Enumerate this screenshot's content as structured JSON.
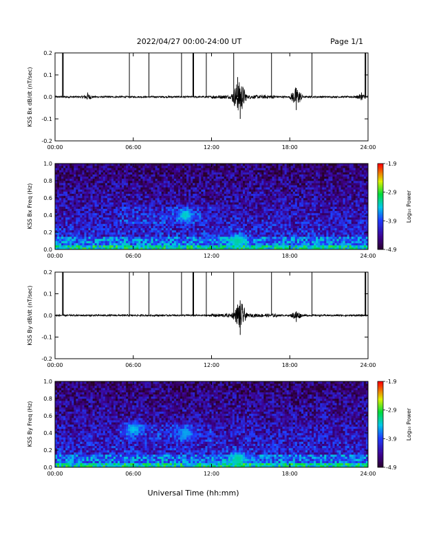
{
  "header": {
    "date_range": "2022/04/27  00:00-24:00 UT",
    "page": "Page 1/1"
  },
  "footer": {
    "xlabel": "Universal Time (hh:mm)"
  },
  "chart_data": [
    {
      "type": "line",
      "ylabel": "KSS Bx dB/dt (nT/sec)",
      "ylim": [
        -0.2,
        0.2
      ],
      "xlim": [
        0,
        24
      ],
      "x_ticks": [
        "00:00",
        "06:00",
        "12:00",
        "18:00",
        "24:00"
      ],
      "y_ticks": [
        "0.2",
        "0.1",
        "0.0",
        "-0.1",
        "-0.2"
      ],
      "markers_hours": [
        0.6,
        5.7,
        7.2,
        9.7,
        10.6,
        11.6,
        13.7,
        16.6,
        19.7,
        23.8
      ],
      "baseline": 0.0,
      "bursts": [
        {
          "hour": 2.5,
          "amplitude": 0.02
        },
        {
          "hour": 14.0,
          "amplitude": 0.09
        },
        {
          "hour": 14.2,
          "amplitude": -0.1
        },
        {
          "hour": 18.5,
          "amplitude": 0.04
        },
        {
          "hour": 18.5,
          "amplitude": -0.06
        },
        {
          "hour": 23.5,
          "amplitude": 0.02
        }
      ],
      "series": [
        {
          "values": [
            0.0,
            0.005,
            -0.005,
            0.0
          ]
        }
      ]
    },
    {
      "type": "heatmap",
      "ylabel": "KSS Bx Freq (Hz)",
      "ylim": [
        0.0,
        1.0
      ],
      "xlim": [
        0,
        24
      ],
      "x_ticks": [
        "00:00",
        "06:00",
        "12:00",
        "18:00",
        "24:00"
      ],
      "y_ticks": [
        "1.0",
        "0.8",
        "0.6",
        "0.4",
        "0.2",
        "0.0"
      ],
      "colorbar": {
        "label": "Log$_{10}$ Power",
        "label_text": "Log₁₀ Power",
        "ticks": [
          "-1.9",
          "-2.9",
          "-3.9",
          "-4.9"
        ],
        "range": [
          -4.9,
          -1.9
        ]
      },
      "features": [
        {
          "hour": 10.0,
          "freq": 0.4,
          "level": -3.3
        },
        {
          "hour": 14.0,
          "freq": 0.1,
          "level": -3.2
        }
      ]
    },
    {
      "type": "line",
      "ylabel": "KSS By dB/dt (nT/sec)",
      "ylim": [
        -0.2,
        0.2
      ],
      "xlim": [
        0,
        24
      ],
      "x_ticks": [
        "00:00",
        "06:00",
        "12:00",
        "18:00",
        "24:00"
      ],
      "y_ticks": [
        "0.2",
        "0.1",
        "0.0",
        "-0.1",
        "-0.2"
      ],
      "markers_hours": [
        0.6,
        5.7,
        7.2,
        9.7,
        10.6,
        11.6,
        13.7,
        16.6,
        19.7,
        23.8
      ],
      "baseline": 0.0,
      "bursts": [
        {
          "hour": 14.0,
          "amplitude": 0.05
        },
        {
          "hour": 14.2,
          "amplitude": -0.09
        },
        {
          "hour": 18.5,
          "amplitude": -0.03
        }
      ],
      "series": [
        {
          "values": [
            0.0,
            0.005,
            -0.005,
            0.0
          ]
        }
      ]
    },
    {
      "type": "heatmap",
      "ylabel": "KSS By Freq (Hz)",
      "ylim": [
        0.0,
        1.0
      ],
      "xlim": [
        0,
        24
      ],
      "x_ticks": [
        "00:00",
        "06:00",
        "12:00",
        "18:00",
        "24:00"
      ],
      "y_ticks": [
        "1.0",
        "0.8",
        "0.6",
        "0.4",
        "0.2",
        "0.0"
      ],
      "colorbar": {
        "label_text": "Log₁₀ Power",
        "ticks": [
          "-1.9",
          "-2.9",
          "-3.9",
          "-4.9"
        ],
        "range": [
          -4.9,
          -1.9
        ]
      },
      "features": [
        {
          "hour": 6.0,
          "freq": 0.45,
          "level": -3.4
        },
        {
          "hour": 10.0,
          "freq": 0.4,
          "level": -3.5
        },
        {
          "hour": 14.0,
          "freq": 0.1,
          "level": -3.2
        }
      ]
    }
  ]
}
